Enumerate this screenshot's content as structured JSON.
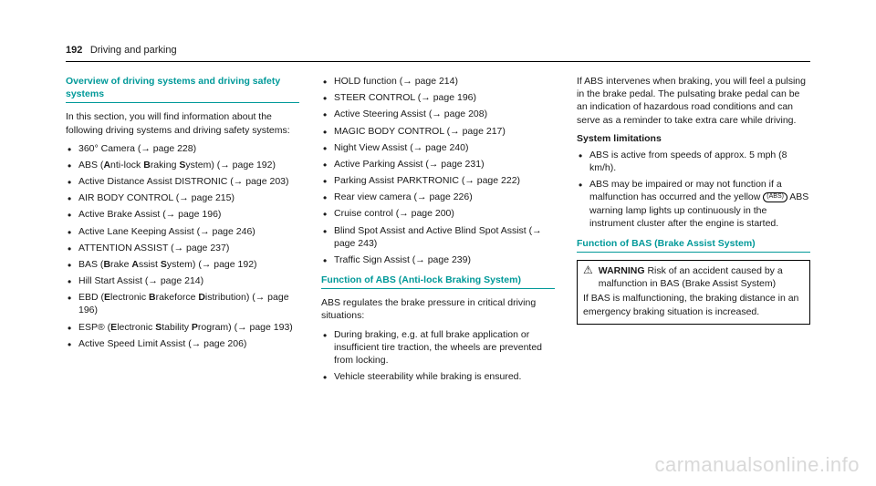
{
  "header": {
    "page_num": "192",
    "section": "Driving and parking"
  },
  "col1": {
    "heading": "Overview of driving systems and driving safety systems",
    "intro": "In this section, you will find information about the following driving systems and driving safety systems:",
    "items": [
      "360° Camera (→ page 228)",
      "ABS (<strong>A</strong>nti-lock <strong>B</strong>raking <strong>S</strong>ystem) (→ page 192)",
      "Active Distance Assist DISTRONIC (→ page 203)",
      "AIR BODY CONTROL (→ page 215)",
      "Active Brake Assist (→ page 196)",
      "Active Lane Keeping Assist (→ page 246)",
      "ATTENTION ASSIST (→ page 237)",
      "BAS (<strong>B</strong>rake <strong>A</strong>ssist <strong>S</strong>ystem) (→ page 192)",
      "Hill Start Assist (→ page 214)",
      "EBD (<strong>E</strong>lectronic <strong>B</strong>rakeforce <strong>D</strong>istribution) (→ page 196)",
      "ESP® (<strong>E</strong>lectronic <strong>S</strong>tability <strong>P</strong>rogram) (→ page 193)",
      "Active Speed Limit Assist (→ page 206)"
    ]
  },
  "col2": {
    "items": [
      "HOLD function (→ page 214)",
      "STEER CONTROL (→ page 196)",
      "Active Steering Assist (→ page 208)",
      "MAGIC BODY CONTROL (→ page 217)",
      "Night View Assist (→ page 240)",
      "Active Parking Assist (→ page 231)",
      "Parking Assist PARKTRONIC (→ page 222)",
      "Rear view camera (→ page 226)",
      "Cruise control (→ page 200)",
      "Blind Spot Assist and Active Blind Spot Assist (→ page 243)",
      "Traffic Sign Assist (→ page 239)"
    ],
    "heading2": "Function of ABS (Anti-lock Braking System)",
    "para2": "ABS regulates the brake pressure in critical driving situations:",
    "items2": [
      "During braking, e.g. at full brake application or insufficient tire traction, the wheels are prevented from locking.",
      "Vehicle steerability while braking is ensured."
    ]
  },
  "col3": {
    "para1": "If ABS intervenes when braking, you will feel a pulsing in the brake pedal. The pulsating brake pedal can be an indication of hazardous road conditions and can serve as a reminder to take extra care while driving.",
    "limit_heading": "System limitations",
    "limit_items": [
      "ABS is active from speeds of approx. 5 mph (8 km/h).",
      "ABS may be impaired or may not function if a malfunction has occurred and the yellow <span class=\"abs-icon\">(ABS)</span> ABS warning lamp lights up continuously in the instrument cluster after the engine is started."
    ],
    "heading3": "Function of BAS (Brake Assist System)",
    "warn_title": "WARNING",
    "warn_sub": "Risk of an accident caused by a malfunction in BAS (Brake Assist System)",
    "warn_body": "If BAS is malfunctioning, the braking distance in an emergency braking situation is increased."
  },
  "watermark": "carmanualsonline.info"
}
